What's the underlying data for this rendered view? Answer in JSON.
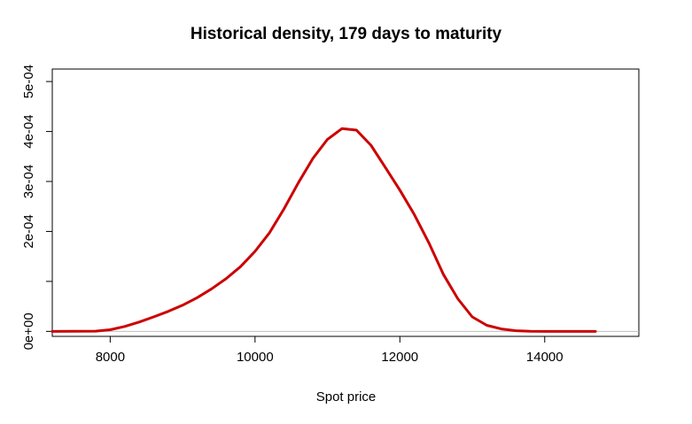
{
  "chart_data": {
    "type": "line",
    "title": "Historical density, 179 days to maturity",
    "xlabel": "Spot price",
    "ylabel": "",
    "xlim": [
      7200,
      15300
    ],
    "ylim": [
      -1e-05,
      0.000525
    ],
    "x_ticks": [
      8000,
      10000,
      12000,
      14000
    ],
    "x_tick_labels": [
      "8000",
      "10000",
      "12000",
      "14000"
    ],
    "y_ticks": [
      0,
      0.0001,
      0.0002,
      0.0003,
      0.0004,
      0.0005
    ],
    "y_tick_labels": [
      "0e+00",
      "",
      "2e-04",
      "3e-04",
      "4e-04",
      "5e-04"
    ],
    "grid": false,
    "zero_line_color": "#bebebe",
    "series": [
      {
        "color": "#cc0000",
        "x": [
          7200,
          7800,
          8000,
          8200,
          8400,
          8600,
          8800,
          9000,
          9200,
          9400,
          9600,
          9800,
          10000,
          10200,
          10400,
          10600,
          10800,
          11000,
          11200,
          11400,
          11600,
          11800,
          12000,
          12200,
          12400,
          12600,
          12800,
          13000,
          13200,
          13400,
          13600,
          13800,
          14000,
          14200,
          14400,
          14700
        ],
        "y": [
          0,
          5e-07,
          3.3e-06,
          9.8e-06,
          1.87e-05,
          2.89e-05,
          4e-05,
          5.24e-05,
          6.75e-05,
          8.51e-05,
          0.0001053,
          0.0001296,
          0.0001601,
          0.0001975,
          0.0002451,
          0.0002979,
          0.0003463,
          0.0003843,
          0.0004057,
          0.0004028,
          0.0003727,
          0.0003279,
          0.0002827,
          0.0002338,
          0.0001773,
          0.0001143,
          6.53e-05,
          2.89e-05,
          1.22e-05,
          4.9e-06,
          1.3e-06,
          2e-07,
          0,
          0,
          0,
          0
        ]
      }
    ]
  }
}
